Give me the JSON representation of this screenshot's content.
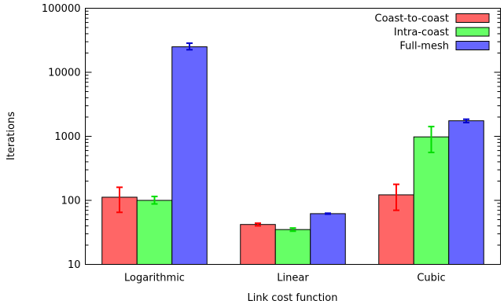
{
  "chart_data": {
    "type": "bar",
    "title": "",
    "xlabel": "Link cost function",
    "ylabel": "Iterations",
    "yscale": "log",
    "ylim": [
      10,
      100000
    ],
    "yticks": [
      {
        "value": 10,
        "label": "10"
      },
      {
        "value": 100,
        "label": "100"
      },
      {
        "value": 1000,
        "label": "1000"
      },
      {
        "value": 10000,
        "label": "10000"
      },
      {
        "value": 100000,
        "label": "100000"
      }
    ],
    "categories": [
      "Logarithmic",
      "Linear",
      "Cubic"
    ],
    "legend_position": "top-right",
    "grid": false,
    "series": [
      {
        "name": "Coast-to-coast",
        "color": "#ff6666",
        "error_color": "#ff0000",
        "values": [
          112,
          42,
          122
        ],
        "error_low": [
          65,
          40,
          70
        ],
        "error_high": [
          160,
          44,
          178
        ]
      },
      {
        "name": "Intra-coast",
        "color": "#66ff66",
        "error_color": "#00dd00",
        "values": [
          100,
          35,
          980
        ],
        "error_low": [
          88,
          33,
          560
        ],
        "error_high": [
          115,
          37,
          1420
        ]
      },
      {
        "name": "Full-mesh",
        "color": "#6666ff",
        "error_color": "#0000cc",
        "values": [
          25000,
          62,
          1750
        ],
        "error_low": [
          22500,
          61,
          1640
        ],
        "error_high": [
          28500,
          63,
          1850
        ]
      }
    ]
  }
}
